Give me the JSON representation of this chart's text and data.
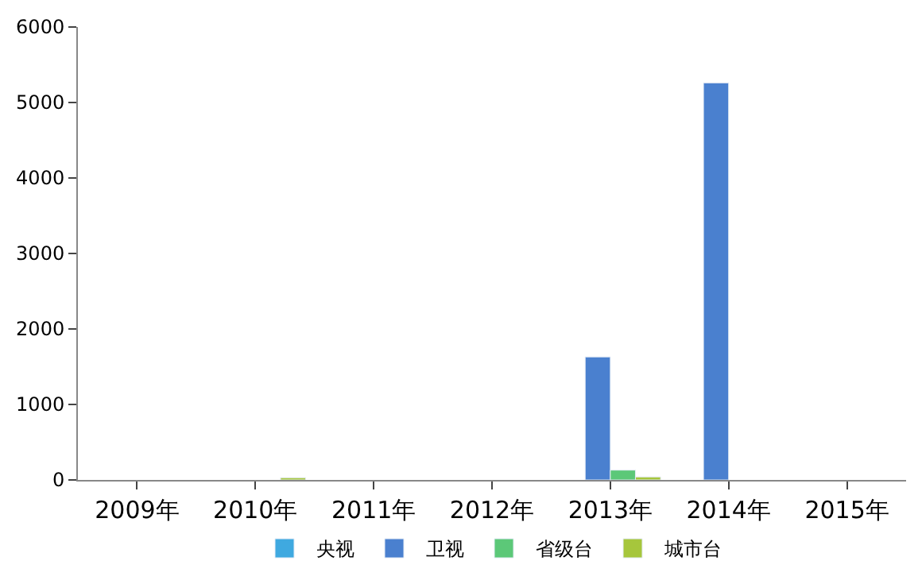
{
  "chart_data": {
    "type": "bar",
    "categories": [
      "2009年",
      "2010年",
      "2011年",
      "2012年",
      "2013年",
      "2014年",
      "2015年"
    ],
    "series": [
      {
        "name": "央视",
        "color": "#3fa9e0",
        "values": [
          null,
          null,
          null,
          null,
          null,
          null,
          null
        ]
      },
      {
        "name": "卫视",
        "color": "#4a80cf",
        "values": [
          null,
          null,
          null,
          null,
          1630,
          5260,
          null
        ]
      },
      {
        "name": "省级台",
        "color": "#5cc878",
        "values": [
          null,
          null,
          null,
          null,
          130,
          null,
          null
        ]
      },
      {
        "name": "城市台",
        "color": "#a6c63c",
        "values": [
          null,
          30,
          null,
          null,
          40,
          null,
          null
        ]
      }
    ],
    "ylim": [
      0,
      6000
    ],
    "yticks": [
      0,
      1000,
      2000,
      3000,
      4000,
      5000,
      6000
    ],
    "legend": "bottom"
  }
}
